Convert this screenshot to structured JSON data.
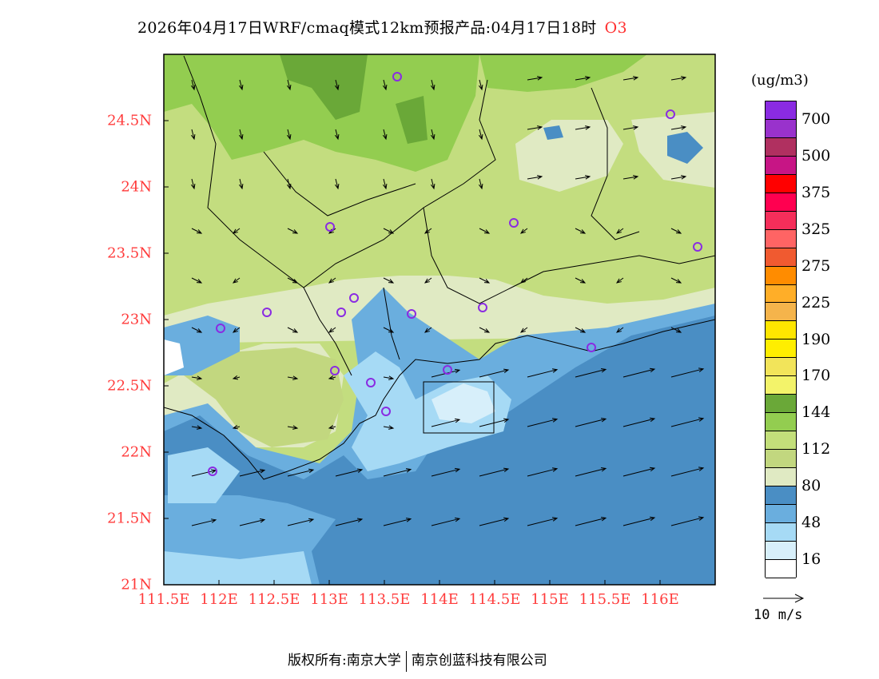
{
  "title": {
    "main": "2026年04月17日WRF/cmaq模式12km预报产品:04月17日18时",
    "species": "O3"
  },
  "axes": {
    "lat_labels": [
      "24.5N",
      "24N",
      "23.5N",
      "23N",
      "22.5N",
      "22N",
      "21.5N",
      "21N"
    ],
    "lat_values": [
      24.5,
      24,
      23.5,
      23,
      22.5,
      22,
      21.5,
      21
    ],
    "lon_labels": [
      "111.5E",
      "112E",
      "112.5E",
      "113E",
      "113.5E",
      "114E",
      "114.5E",
      "115E",
      "115.5E",
      "116E"
    ],
    "lon_values": [
      111.5,
      112,
      112.5,
      113,
      113.5,
      114,
      114.5,
      115,
      115.5,
      116
    ],
    "lat_range": [
      21,
      25
    ],
    "lon_range": [
      111.5,
      116.5
    ]
  },
  "legend": {
    "unit": "(ug/m3)",
    "labels": [
      "700",
      "500",
      "375",
      "325",
      "275",
      "225",
      "190",
      "170",
      "144",
      "112",
      "80",
      "48",
      "16"
    ],
    "colors": [
      "#8a2be2",
      "#9932cc",
      "#b03060",
      "#c71585",
      "#ff0000",
      "#ff0050",
      "#f52e5a",
      "#ff6464",
      "#f05a30",
      "#ff8c00",
      "#ffae28",
      "#f5b44b",
      "#ffe600",
      "#ffee00",
      "#f2e45a",
      "#f3f36a",
      "#6aa838",
      "#93cd50",
      "#c3df7a",
      "#c2d77f",
      "#e0eac3",
      "#4a8ec4",
      "#6aaede",
      "#a6daf5",
      "#d7effa",
      "#ffffff"
    ]
  },
  "wind_reference": "10 m/s",
  "footer": {
    "left": "版权所有:南京大学",
    "right": "南京创蓝科技有限公司"
  }
}
